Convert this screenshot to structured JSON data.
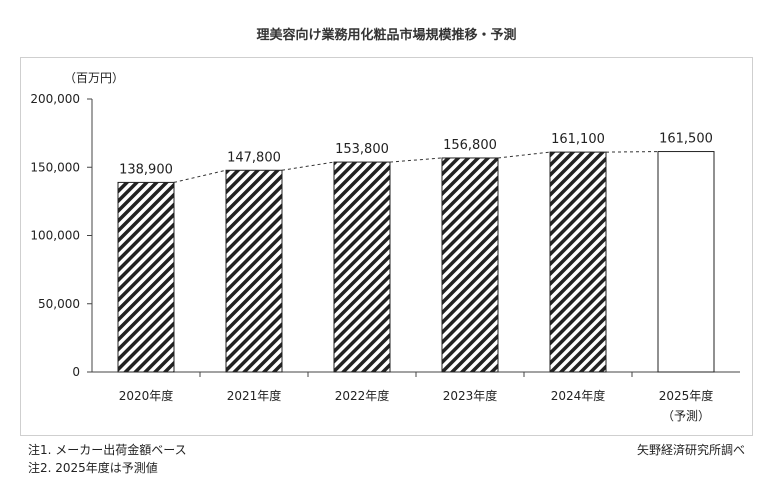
{
  "chart_data": {
    "type": "bar",
    "title": "理美容向け業務用化粧品市場規模推移・予測",
    "unit_label": "（百万円）",
    "categories": [
      "2020年度",
      "2021年度",
      "2022年度",
      "2023年度",
      "2024年度",
      "2025年度"
    ],
    "category_notes": [
      "",
      "",
      "",
      "",
      "",
      "（予測）"
    ],
    "values": [
      138900,
      147800,
      153800,
      156800,
      161100,
      161500
    ],
    "value_labels": [
      "138,900",
      "147,800",
      "153,800",
      "156,800",
      "161,100",
      "161,500"
    ],
    "bar_styles": [
      "hatched",
      "hatched",
      "hatched",
      "hatched",
      "hatched",
      "plain"
    ],
    "yticks": [
      0,
      50000,
      100000,
      150000,
      200000
    ],
    "ytick_labels": [
      "0",
      "50,000",
      "100,000",
      "150,000",
      "200,000"
    ],
    "ylim": [
      0,
      200000
    ],
    "trend_line": "dashed",
    "grid": false,
    "legend": "none"
  },
  "notes": [
    "注1.  メーカー出荷金額ベース",
    "注2.  2025年度は予測値"
  ],
  "source": "矢野経済研究所調べ"
}
